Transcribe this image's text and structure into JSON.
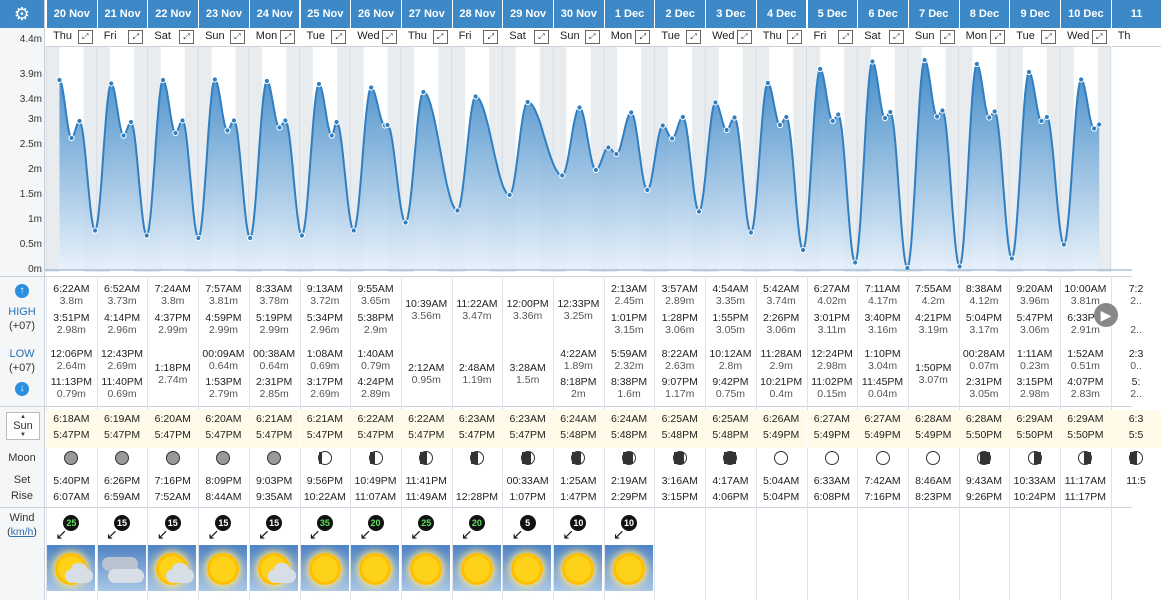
{
  "y_axis": {
    "top_partial": "4.4m",
    "labels": [
      "3.9m",
      "3.4m",
      "3m",
      "2.5m",
      "2m",
      "1.5m",
      "1m",
      "0.5m",
      "0m"
    ]
  },
  "row_labels": {
    "high_title": "HIGH",
    "high_tz": "(+07)",
    "low_title": "LOW",
    "low_tz": "(+07)",
    "sun": "Sun",
    "moon": "Moon",
    "set": "Set",
    "rise": "Rise",
    "wind": "Wind",
    "wind_unit": "km/h"
  },
  "days": [
    {
      "date": "20 Nov",
      "wd": "Thu",
      "high": [
        [
          "6:22AM",
          "3.8m"
        ],
        [
          "3:51PM",
          "2.98m"
        ]
      ],
      "low": [
        [
          "12:06PM",
          "2.64m"
        ],
        [
          "11:13PM",
          "0.79m"
        ]
      ],
      "sunrise": "6:18AM",
      "sunset": "5:47PM",
      "moon": "full",
      "mset": "5:40PM",
      "mrise": "6:07AM",
      "wind": "25",
      "wgreen": true,
      "wx": "partly"
    },
    {
      "date": "21 Nov",
      "wd": "Fri",
      "high": [
        [
          "6:52AM",
          "3.73m"
        ],
        [
          "4:14PM",
          "2.96m"
        ]
      ],
      "low": [
        [
          "12:43PM",
          "2.69m"
        ],
        [
          "11:40PM",
          "0.69m"
        ]
      ],
      "sunrise": "6:19AM",
      "sunset": "5:47PM",
      "moon": "full",
      "mset": "6:26PM",
      "mrise": "6:59AM",
      "wind": "15",
      "wgreen": false,
      "wx": "cloudy"
    },
    {
      "date": "22 Nov",
      "wd": "Sat",
      "high": [
        [
          "7:24AM",
          "3.8m"
        ],
        [
          "4:37PM",
          "2.99m"
        ]
      ],
      "low": [
        [
          "1:18PM",
          "2.74m"
        ]
      ],
      "sunrise": "6:20AM",
      "sunset": "5:47PM",
      "moon": "full",
      "mset": "7:16PM",
      "mrise": "7:52AM",
      "wind": "15",
      "wgreen": false,
      "wx": "partly"
    },
    {
      "date": "23 Nov",
      "wd": "Sun",
      "high": [
        [
          "7:57AM",
          "3.81m"
        ],
        [
          "4:59PM",
          "2.99m"
        ]
      ],
      "low": [
        [
          "00:09AM",
          "0.64m"
        ],
        [
          "1:53PM",
          "2.79m"
        ]
      ],
      "sunrise": "6:20AM",
      "sunset": "5:47PM",
      "moon": "full",
      "mset": "8:09PM",
      "mrise": "8:44AM",
      "wind": "15",
      "wgreen": false,
      "wx": "sunny"
    },
    {
      "date": "24 Nov",
      "wd": "Mon",
      "high": [
        [
          "8:33AM",
          "3.78m"
        ],
        [
          "5:19PM",
          "2.99m"
        ]
      ],
      "low": [
        [
          "00:38AM",
          "0.64m"
        ],
        [
          "2:31PM",
          "2.85m"
        ]
      ],
      "sunrise": "6:21AM",
      "sunset": "5:47PM",
      "moon": "full",
      "mset": "9:03PM",
      "mrise": "9:35AM",
      "wind": "15",
      "wgreen": false,
      "wx": "partly"
    },
    {
      "date": "25 Nov",
      "wd": "Tue",
      "high": [
        [
          "9:13AM",
          "3.72m"
        ],
        [
          "5:34PM",
          "2.96m"
        ]
      ],
      "low": [
        [
          "1:08AM",
          "0.69m"
        ],
        [
          "3:17PM",
          "2.69m"
        ]
      ],
      "sunrise": "6:21AM",
      "sunset": "5:47PM",
      "moon": "waxgib",
      "mset": "9:56PM",
      "mrise": "10:22AM",
      "wind": "35",
      "wgreen": true,
      "wx": "sunny"
    },
    {
      "date": "26 Nov",
      "wd": "Wed",
      "high": [
        [
          "9:55AM",
          "3.65m"
        ],
        [
          "5:38PM",
          "2.9m"
        ]
      ],
      "low": [
        [
          "1:40AM",
          "0.79m"
        ],
        [
          "4:24PM",
          "2.89m"
        ]
      ],
      "sunrise": "6:22AM",
      "sunset": "5:47PM",
      "moon": "waxgib2",
      "mset": "10:49PM",
      "mrise": "11:07AM",
      "wind": "20",
      "wgreen": true,
      "wx": "sunny"
    },
    {
      "date": "27 Nov",
      "wd": "Thu",
      "high": [
        [
          "10:39AM",
          "3.56m"
        ]
      ],
      "low": [
        [
          "2:12AM",
          "0.95m"
        ]
      ],
      "sunrise": "6:22AM",
      "sunset": "5:47PM",
      "moon": "half",
      "mset": "11:41PM",
      "mrise": "11:49AM",
      "wind": "25",
      "wgreen": true,
      "wx": "sunny"
    },
    {
      "date": "28 Nov",
      "wd": "Fri",
      "high": [
        [
          "11:22AM",
          "3.47m"
        ]
      ],
      "low": [
        [
          "2:48AM",
          "1.19m"
        ]
      ],
      "sunrise": "6:23AM",
      "sunset": "5:47PM",
      "moon": "half",
      "mset": "",
      "mrise": "12:28PM",
      "wind": "20",
      "wgreen": true,
      "wx": "sunny"
    },
    {
      "date": "29 Nov",
      "wd": "Sat",
      "high": [
        [
          "12:00PM",
          "3.36m"
        ]
      ],
      "low": [
        [
          "3:28AM",
          "1.5m"
        ]
      ],
      "sunrise": "6:23AM",
      "sunset": "5:47PM",
      "moon": "wcres",
      "mset": "00:33AM",
      "mrise": "1:07PM",
      "wind": "5",
      "wgreen": false,
      "wx": "sunny"
    },
    {
      "date": "30 Nov",
      "wd": "Sun",
      "high": [
        [
          "12:33PM",
          "3.25m"
        ]
      ],
      "low": [
        [
          "4:22AM",
          "1.89m"
        ],
        [
          "8:18PM",
          "2m"
        ]
      ],
      "sunrise": "6:24AM",
      "sunset": "5:48PM",
      "moon": "wcres",
      "mset": "1:25AM",
      "mrise": "1:47PM",
      "wind": "10",
      "wgreen": false,
      "wx": "sunny"
    },
    {
      "date": "1 Dec",
      "wd": "Mon",
      "high": [
        [
          "2:13AM",
          "2.45m"
        ],
        [
          "1:01PM",
          "3.15m"
        ]
      ],
      "low": [
        [
          "5:59AM",
          "2.32m"
        ],
        [
          "8:38PM",
          "1.6m"
        ]
      ],
      "sunrise": "6:24AM",
      "sunset": "5:48PM",
      "moon": "wcres2",
      "mset": "2:19AM",
      "mrise": "2:29PM",
      "wind": "10",
      "wgreen": false,
      "wx": "sunny"
    },
    {
      "date": "2 Dec",
      "wd": "Tue",
      "high": [
        [
          "3:57AM",
          "2.89m"
        ],
        [
          "1:28PM",
          "3.06m"
        ]
      ],
      "low": [
        [
          "8:22AM",
          "2.63m"
        ],
        [
          "9:07PM",
          "1.17m"
        ]
      ],
      "sunrise": "6:25AM",
      "sunset": "5:48PM",
      "moon": "wcres2",
      "mset": "3:16AM",
      "mrise": "3:15PM",
      "wind": "",
      "wgreen": false,
      "wx": ""
    },
    {
      "date": "3 Dec",
      "wd": "Wed",
      "high": [
        [
          "4:54AM",
          "3.35m"
        ],
        [
          "1:55PM",
          "3.05m"
        ]
      ],
      "low": [
        [
          "10:12AM",
          "2.8m"
        ],
        [
          "9:42PM",
          "0.75m"
        ]
      ],
      "sunrise": "6:25AM",
      "sunset": "5:48PM",
      "moon": "thin",
      "mset": "4:17AM",
      "mrise": "4:06PM",
      "wind": "",
      "wgreen": false,
      "wx": ""
    },
    {
      "date": "4 Dec",
      "wd": "Thu",
      "high": [
        [
          "5:42AM",
          "3.74m"
        ],
        [
          "2:26PM",
          "3.06m"
        ]
      ],
      "low": [
        [
          "11:28AM",
          "2.9m"
        ],
        [
          "10:21PM",
          "0.4m"
        ]
      ],
      "sunrise": "6:26AM",
      "sunset": "5:49PM",
      "moon": "new",
      "mset": "5:04AM",
      "mrise": "5:04PM",
      "wind": "",
      "wgreen": false,
      "wx": ""
    },
    {
      "date": "5 Dec",
      "wd": "Fri",
      "high": [
        [
          "6:27AM",
          "4.02m"
        ],
        [
          "3:01PM",
          "3.11m"
        ]
      ],
      "low": [
        [
          "12:24PM",
          "2.98m"
        ],
        [
          "11:02PM",
          "0.15m"
        ]
      ],
      "sunrise": "6:27AM",
      "sunset": "5:49PM",
      "moon": "new",
      "mset": "6:33AM",
      "mrise": "6:08PM",
      "wind": "",
      "wgreen": false,
      "wx": ""
    },
    {
      "date": "6 Dec",
      "wd": "Sat",
      "high": [
        [
          "7:11AM",
          "4.17m"
        ],
        [
          "3:40PM",
          "3.16m"
        ]
      ],
      "low": [
        [
          "1:10PM",
          "3.04m"
        ],
        [
          "11:45PM",
          "0.04m"
        ]
      ],
      "sunrise": "6:27AM",
      "sunset": "5:49PM",
      "moon": "new",
      "mset": "7:42AM",
      "mrise": "7:16PM",
      "wind": "",
      "wgreen": false,
      "wx": ""
    },
    {
      "date": "7 Dec",
      "wd": "Sun",
      "high": [
        [
          "7:55AM",
          "4.2m"
        ],
        [
          "4:21PM",
          "3.19m"
        ]
      ],
      "low": [
        [
          "1:50PM",
          "3.07m"
        ]
      ],
      "sunrise": "6:28AM",
      "sunset": "5:49PM",
      "moon": "new",
      "mset": "8:46AM",
      "mrise": "8:23PM",
      "wind": "",
      "wgreen": false,
      "wx": ""
    },
    {
      "date": "8 Dec",
      "wd": "Mon",
      "high": [
        [
          "8:38AM",
          "4.12m"
        ],
        [
          "5:04PM",
          "3.17m"
        ]
      ],
      "low": [
        [
          "00:28AM",
          "0.07m"
        ],
        [
          "2:31PM",
          "3.05m"
        ]
      ],
      "sunrise": "6:28AM",
      "sunset": "5:50PM",
      "moon": "thinr",
      "mset": "9:43AM",
      "mrise": "9:26PM",
      "wind": "",
      "wgreen": false,
      "wx": ""
    },
    {
      "date": "9 Dec",
      "wd": "Tue",
      "high": [
        [
          "9:20AM",
          "3.96m"
        ],
        [
          "5:47PM",
          "3.06m"
        ]
      ],
      "low": [
        [
          "1:11AM",
          "0.23m"
        ],
        [
          "3:15PM",
          "2.98m"
        ]
      ],
      "sunrise": "6:29AM",
      "sunset": "5:50PM",
      "moon": "cresr",
      "mset": "10:33AM",
      "mrise": "10:24PM",
      "wind": "",
      "wgreen": false,
      "wx": ""
    },
    {
      "date": "10 Dec",
      "wd": "Wed",
      "high": [
        [
          "10:00AM",
          "3.81m"
        ],
        [
          "6:33PM",
          "2.91m"
        ]
      ],
      "low": [
        [
          "1:52AM",
          "0.51m"
        ],
        [
          "4:07PM",
          "2.83m"
        ]
      ],
      "sunrise": "6:29AM",
      "sunset": "5:50PM",
      "moon": "cresr",
      "mset": "11:17AM",
      "mrise": "11:17PM",
      "wind": "",
      "wgreen": false,
      "wx": ""
    },
    {
      "date": "11",
      "wd": "Th",
      "high": [
        [
          "7:2",
          "2.."
        ],
        [
          "",
          "2.."
        ]
      ],
      "low": [
        [
          "2:3",
          "0.."
        ],
        [
          "5:",
          "2.."
        ]
      ],
      "sunrise": "6:3",
      "sunset": "5:5",
      "moon": "half",
      "mset": "11:5",
      "mrise": "",
      "wind": "",
      "wgreen": false,
      "wx": ""
    }
  ],
  "colors": {
    "header": "#3d89c7",
    "curve": "#2f7fc2",
    "fill_top": "#2f7fc2",
    "fill_bottom": "#e6f0fa",
    "sunband": "#fffbe8"
  }
}
